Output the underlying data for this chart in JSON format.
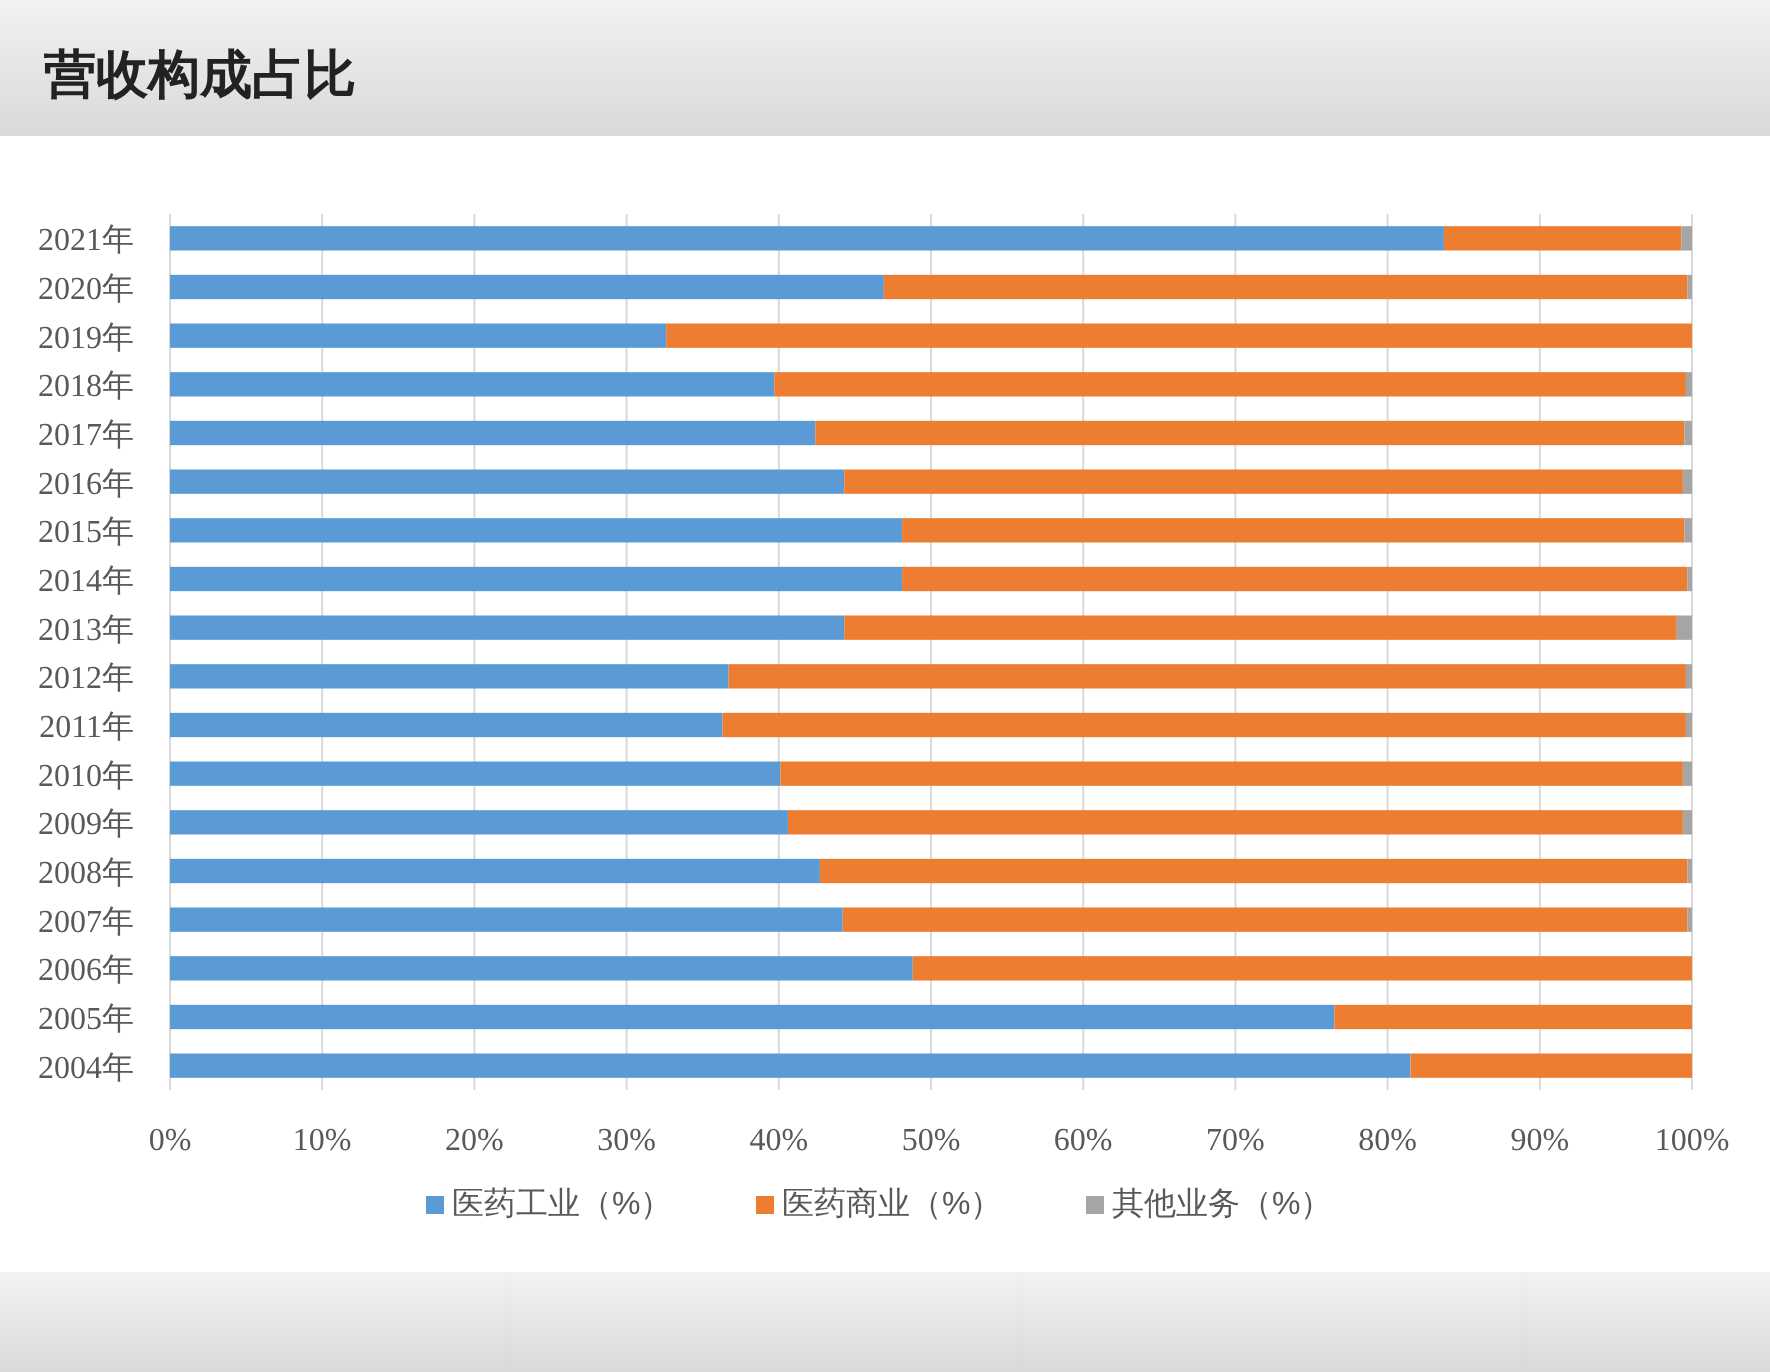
{
  "chart_data": {
    "type": "bar",
    "orientation": "horizontal",
    "stacked": true,
    "title": "营收构成占比",
    "categories": [
      "2021年",
      "2020年",
      "2019年",
      "2018年",
      "2017年",
      "2016年",
      "2015年",
      "2014年",
      "2013年",
      "2012年",
      "2011年",
      "2010年",
      "2009年",
      "2008年",
      "2007年",
      "2006年",
      "2005年",
      "2004年"
    ],
    "series": [
      {
        "name": "医药工业（%）",
        "color": "#5b9bd5",
        "values": [
          83.7,
          46.9,
          32.6,
          39.7,
          42.4,
          44.3,
          48.1,
          48.1,
          44.3,
          36.7,
          36.3,
          40.1,
          40.6,
          42.7,
          44.2,
          48.8,
          76.5,
          81.5
        ]
      },
      {
        "name": "医药商业（%）",
        "color": "#ed7d31",
        "values": [
          15.6,
          52.8,
          67.4,
          59.9,
          57.1,
          55.1,
          51.4,
          51.6,
          54.7,
          62.9,
          63.3,
          59.3,
          58.8,
          57.0,
          55.5,
          51.2,
          23.5,
          18.5
        ]
      },
      {
        "name": "其他业务（%）",
        "color": "#a5a5a5",
        "values": [
          0.7,
          0.3,
          0,
          0.4,
          0.5,
          0.6,
          0.5,
          0.3,
          1.0,
          0.4,
          0.4,
          0.6,
          0.6,
          0.3,
          0.3,
          0,
          0,
          0
        ]
      }
    ],
    "xlim": [
      0,
      100
    ],
    "xticks": [
      {
        "value": 0,
        "label": "0%"
      },
      {
        "value": 10,
        "label": "10%"
      },
      {
        "value": 20,
        "label": "20%"
      },
      {
        "value": 30,
        "label": "30%"
      },
      {
        "value": 40,
        "label": "40%"
      },
      {
        "value": 50,
        "label": "50%"
      },
      {
        "value": 60,
        "label": "60%"
      },
      {
        "value": 70,
        "label": "70%"
      },
      {
        "value": 80,
        "label": "80%"
      },
      {
        "value": 90,
        "label": "90%"
      },
      {
        "value": 100,
        "label": "100%"
      }
    ],
    "grid": "x",
    "legend": "bottom"
  }
}
